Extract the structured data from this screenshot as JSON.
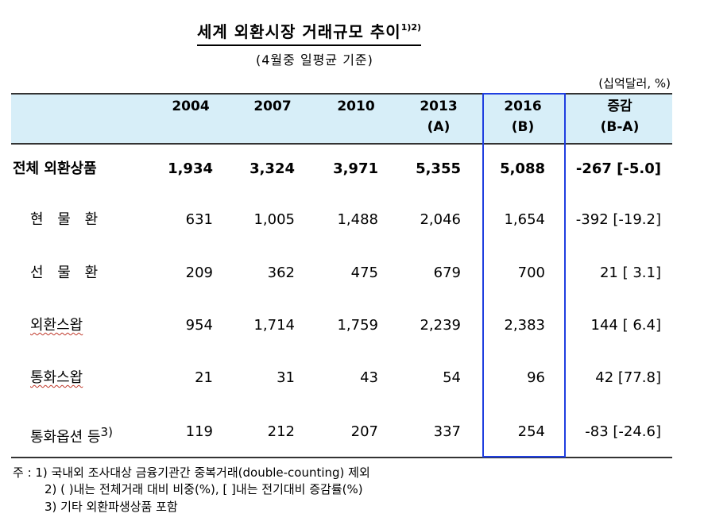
{
  "title": "세계 외환시장 거래규모 추이",
  "title_note": "1)2)",
  "subtitle": "(4월중 일평균 기준)",
  "unit": "(십억달러, %)",
  "columns": [
    "2004",
    "2007",
    "2010",
    "2013",
    "2016",
    "증감"
  ],
  "column_sub": [
    "",
    "",
    "",
    "(A)",
    "(B)",
    "(B-A)"
  ],
  "rows": [
    {
      "label": "전체 외환상품",
      "values": [
        "1,934",
        "3,324",
        "3,971",
        "5,355",
        "5,088",
        "-267 [-5.0]"
      ]
    },
    {
      "label": "현 물 환",
      "values": [
        "631",
        "1,005",
        "1,488",
        "2,046",
        "1,654",
        "-392 [-19.2]"
      ]
    },
    {
      "label": "선 물 환",
      "values": [
        "209",
        "362",
        "475",
        "679",
        "700",
        "21 [ 3.1]"
      ]
    },
    {
      "label": "외환스왑",
      "values": [
        "954",
        "1,714",
        "1,759",
        "2,239",
        "2,383",
        "144 [ 6.4]"
      ]
    },
    {
      "label": "통화스왑",
      "values": [
        "21",
        "31",
        "43",
        "54",
        "96",
        "42 [77.8]"
      ]
    },
    {
      "label": "통화옵션 등",
      "label_note": "3)",
      "values": [
        "119",
        "212",
        "207",
        "337",
        "254",
        "-83 [-24.6]"
      ]
    }
  ],
  "notes": [
    "주 : 1) 국내외 조사대상 금융기관간 중복거래(double-counting) 제외",
    "2) (   )내는 전체거래 대비 비중(%), [   ]내는 전기대비 증감률(%)",
    "3) 기타 외환파생상품 포함"
  ]
}
